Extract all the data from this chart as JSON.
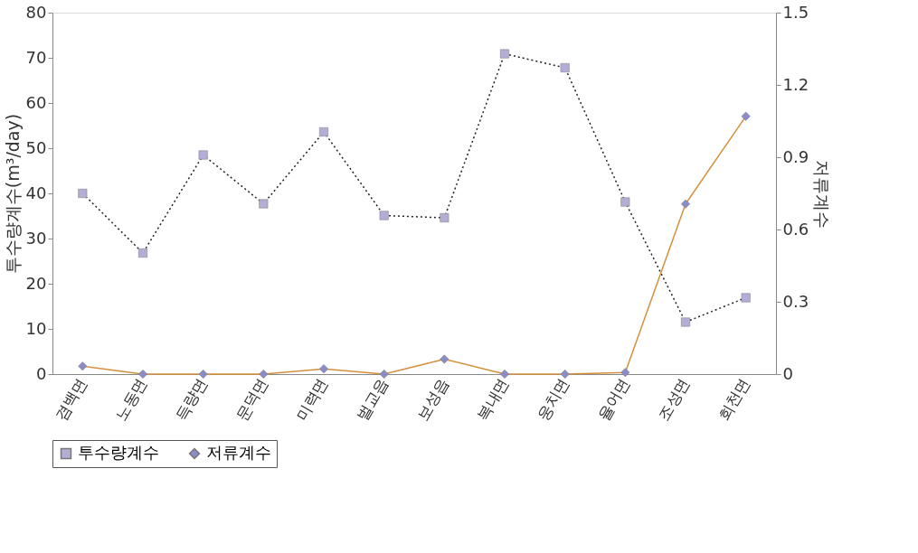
{
  "chart_data": {
    "type": "line",
    "xlabel": null,
    "categories": [
      "겸백면",
      "노동면",
      "득량면",
      "문덕면",
      "미력면",
      "벌교읍",
      "보성읍",
      "복내면",
      "웅치면",
      "율어면",
      "조성면",
      "회천면"
    ],
    "ylabel": "투수량계수(m³/day)",
    "y2label": "저류계수",
    "ylim": [
      0,
      80
    ],
    "yticks": [
      0,
      10,
      20,
      30,
      40,
      50,
      60,
      70,
      80
    ],
    "y2lim": [
      0,
      1.5
    ],
    "y2ticks": [
      0,
      0.3,
      0.6,
      0.9,
      1.2,
      1.5
    ],
    "series": [
      {
        "name": "투수량계수",
        "color": "#b4aed6",
        "marker": "square",
        "line_style": "dotted",
        "values": [
          40.0,
          26.8,
          48.5,
          37.7,
          53.6,
          35.1,
          34.6,
          70.9,
          67.8,
          38.1,
          11.5,
          16.9
        ]
      },
      {
        "name": "저류계수",
        "color": "#8a8cc8",
        "marker": "diamond",
        "line_style": "solid",
        "axis": "y2",
        "values": [
          0.033,
          0,
          0,
          0,
          0.022,
          0,
          0.062,
          0,
          0,
          0.007,
          0.706,
          1.07
        ]
      }
    ],
    "grid": false,
    "legend": "bottom"
  }
}
